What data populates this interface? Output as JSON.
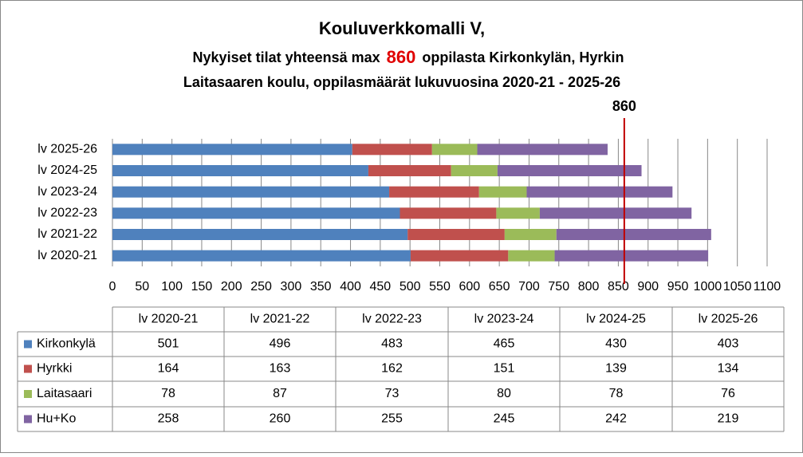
{
  "chart_data": {
    "type": "bar",
    "orientation": "horizontal",
    "stacked": true,
    "title": "Kouluverkkomalli V,",
    "subtitle": [
      "Nykyiset tilat yhteensä  max",
      "860",
      "oppilasta  Kirkonkylän,  Hyrkin",
      "Laitasaaren  koulu, oppilasmäärät  lukuvuosina  2020-21 - 2025-26"
    ],
    "highlight_color": "#e00000",
    "categories": [
      "lv 2020-21",
      "lv 2021-22",
      "lv 2022-23",
      "lv 2023-24",
      "lv 2024-25",
      "lv 2025-26"
    ],
    "series": [
      {
        "name": "Kirkonkylä",
        "color": "#4f81bd",
        "values": [
          501,
          496,
          483,
          465,
          430,
          403
        ]
      },
      {
        "name": "Hyrkki",
        "color": "#c0504d",
        "values": [
          164,
          163,
          162,
          151,
          139,
          134
        ]
      },
      {
        "name": "Laitasaari",
        "color": "#9bbb59",
        "values": [
          78,
          87,
          73,
          80,
          78,
          76
        ]
      },
      {
        "name": "Hu+Ko",
        "color": "#8064a2",
        "values": [
          258,
          260,
          255,
          245,
          242,
          219
        ]
      }
    ],
    "xlim": [
      0,
      1100
    ],
    "xticks": [
      0,
      50,
      100,
      150,
      200,
      250,
      300,
      350,
      400,
      450,
      500,
      550,
      600,
      650,
      700,
      750,
      800,
      850,
      900,
      950,
      1000,
      1050,
      1100
    ],
    "grid": true,
    "reference_line": {
      "value": 860,
      "color": "#c00000"
    },
    "data_table": true
  }
}
